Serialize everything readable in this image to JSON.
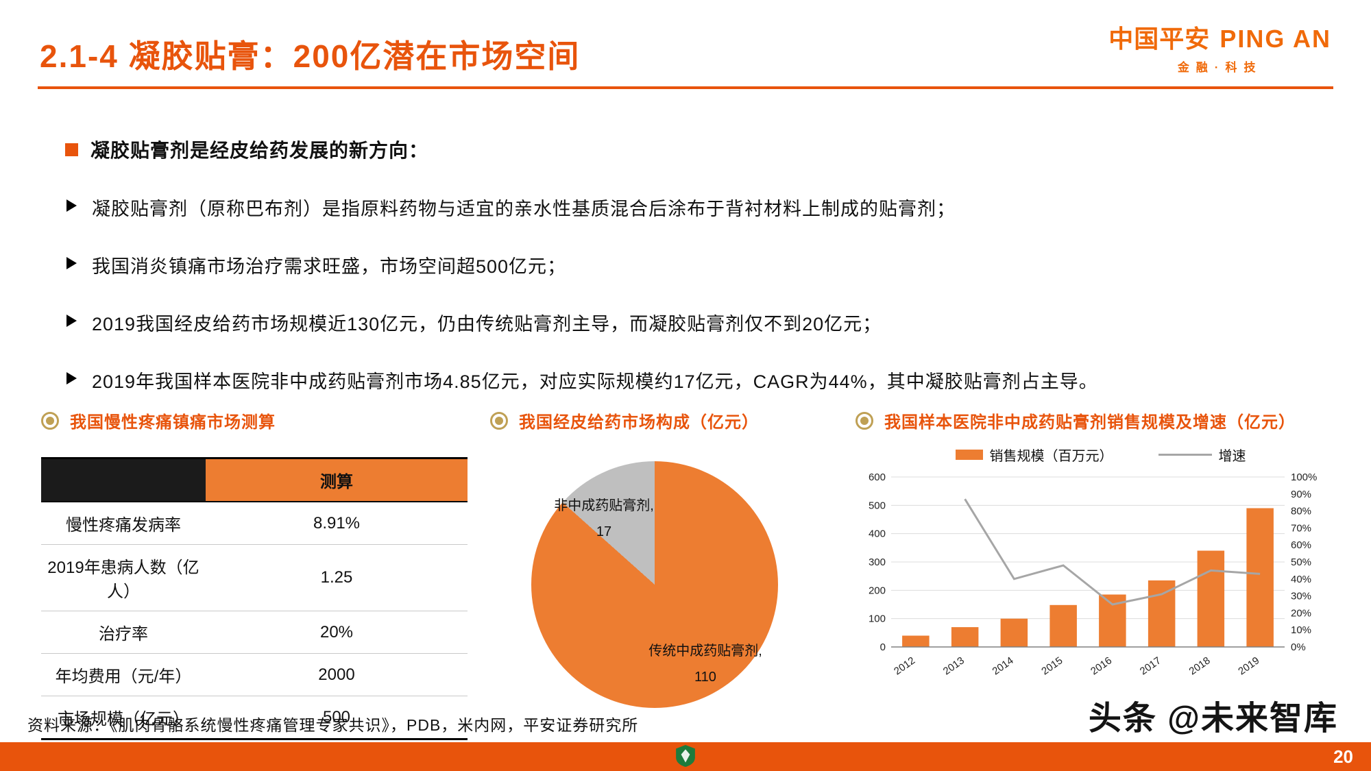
{
  "header": {
    "title": "2.1-4 凝胶贴膏：200亿潜在市场空间",
    "logo": {
      "cn": "中国平安",
      "en": "PING AN",
      "sub": "金融·科技"
    }
  },
  "bullets": {
    "lead": "凝胶贴膏剂是经皮给药发展的新方向：",
    "items": [
      "凝胶贴膏剂（原称巴布剂）是指原料药物与适宜的亲水性基质混合后涂布于背衬材料上制成的贴膏剂；",
      "我国消炎镇痛市场治疗需求旺盛，市场空间超500亿元；",
      "2019我国经皮给药市场规模近130亿元，仍由传统贴膏剂主导，而凝胶贴膏剂仅不到20亿元；",
      "2019年我国样本医院非中成药贴膏剂市场4.85亿元，对应实际规模约17亿元，CAGR为44%，其中凝胶贴膏剂占主导。"
    ]
  },
  "table": {
    "title": "我国慢性疼痛镇痛市场测算",
    "header": "测算",
    "rows": [
      {
        "label": "慢性疼痛发病率",
        "value": "8.91%"
      },
      {
        "label": "2019年患病人数（亿人）",
        "value": "1.25"
      },
      {
        "label": "治疗率",
        "value": "20%"
      },
      {
        "label": "年均费用（元/年）",
        "value": "2000"
      },
      {
        "label": "市场规模（亿元）",
        "value": "500"
      }
    ]
  },
  "chart_data": [
    {
      "type": "pie",
      "title": "我国经皮给药市场构成（亿元）",
      "slices": [
        {
          "label": "传统中成药贴膏剂",
          "value": 110,
          "color": "#ED7D31"
        },
        {
          "label": "非中成药贴膏剂",
          "value": 17,
          "color": "#BFBFBF"
        }
      ],
      "start_angle": "top",
      "direction": "clockwise"
    },
    {
      "type": "bar+line",
      "title": "我国样本医院非中成药贴膏剂销售规模及增速（亿元）",
      "categories": [
        "2012",
        "2013",
        "2014",
        "2015",
        "2016",
        "2017",
        "2018",
        "2019"
      ],
      "series": [
        {
          "name": "销售规模（百万元）",
          "type": "bar",
          "axis": "left",
          "color": "#ED7D31",
          "values": [
            40,
            70,
            100,
            148,
            185,
            235,
            340,
            490
          ]
        },
        {
          "name": "增速",
          "type": "line",
          "axis": "right",
          "color": "#A6A6A6",
          "values": [
            null,
            87,
            40,
            48,
            25,
            31,
            45,
            43
          ]
        }
      ],
      "left_axis": {
        "min": 0,
        "max": 600,
        "step": 100
      },
      "right_axis": {
        "min": 0,
        "max": 100,
        "step": 10,
        "suffix": "%"
      },
      "grid": true,
      "legend_position": "top"
    }
  ],
  "footer": {
    "source": "资料来源：《肌肉骨骼系统慢性疼痛管理专家共识》，PDB，米内网，平安证券研究所",
    "watermark": "头条 @未来智库",
    "page_number": "20"
  },
  "colors": {
    "accent": "#E8540C",
    "bar": "#ED7D31",
    "gray": "#BFBFBF",
    "line": "#A6A6A6",
    "gold": "#BFA054"
  }
}
